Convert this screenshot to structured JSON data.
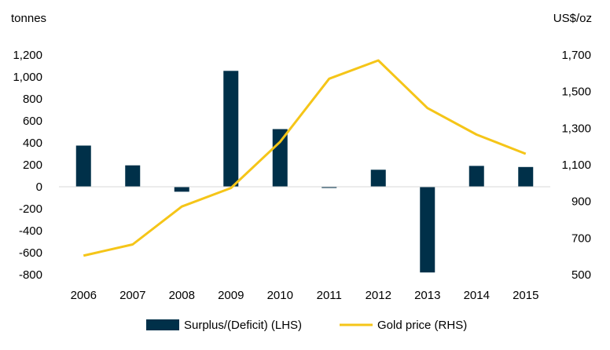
{
  "chart_data": {
    "type": "bar+line",
    "categories": [
      "2006",
      "2007",
      "2008",
      "2009",
      "2010",
      "2011",
      "2012",
      "2013",
      "2014",
      "2015"
    ],
    "left_axis": {
      "unit_label": "tonnes",
      "ylim": [
        -800,
        1200
      ],
      "ticks": [
        1200,
        1000,
        800,
        600,
        400,
        200,
        0,
        -200,
        -400,
        -600,
        -800
      ],
      "tick_labels": [
        "1,200",
        "1,000",
        "800",
        "600",
        "400",
        "200",
        "0",
        "-200",
        "-400",
        "-600",
        "-800"
      ]
    },
    "right_axis": {
      "unit_label": "US$/oz",
      "ylim": [
        500,
        1700
      ],
      "ticks": [
        1700,
        1500,
        1300,
        1100,
        900,
        700,
        500
      ],
      "tick_labels": [
        "1,700",
        "1,500",
        "1,300",
        "1,100",
        "900",
        "700",
        "500"
      ]
    },
    "series": [
      {
        "name": "Surplus/(Deficit) (LHS)",
        "type": "bar",
        "axis": "left",
        "color": "#003049",
        "values": [
          375,
          195,
          -45,
          1055,
          525,
          -10,
          155,
          -780,
          190,
          180
        ]
      },
      {
        "name": "Gold price (RHS)",
        "type": "line",
        "axis": "right",
        "color": "#F5C518",
        "values": [
          604,
          665,
          872,
          973,
          1225,
          1570,
          1670,
          1410,
          1265,
          1160
        ]
      }
    ],
    "grid": false,
    "legend_position": "bottom"
  }
}
